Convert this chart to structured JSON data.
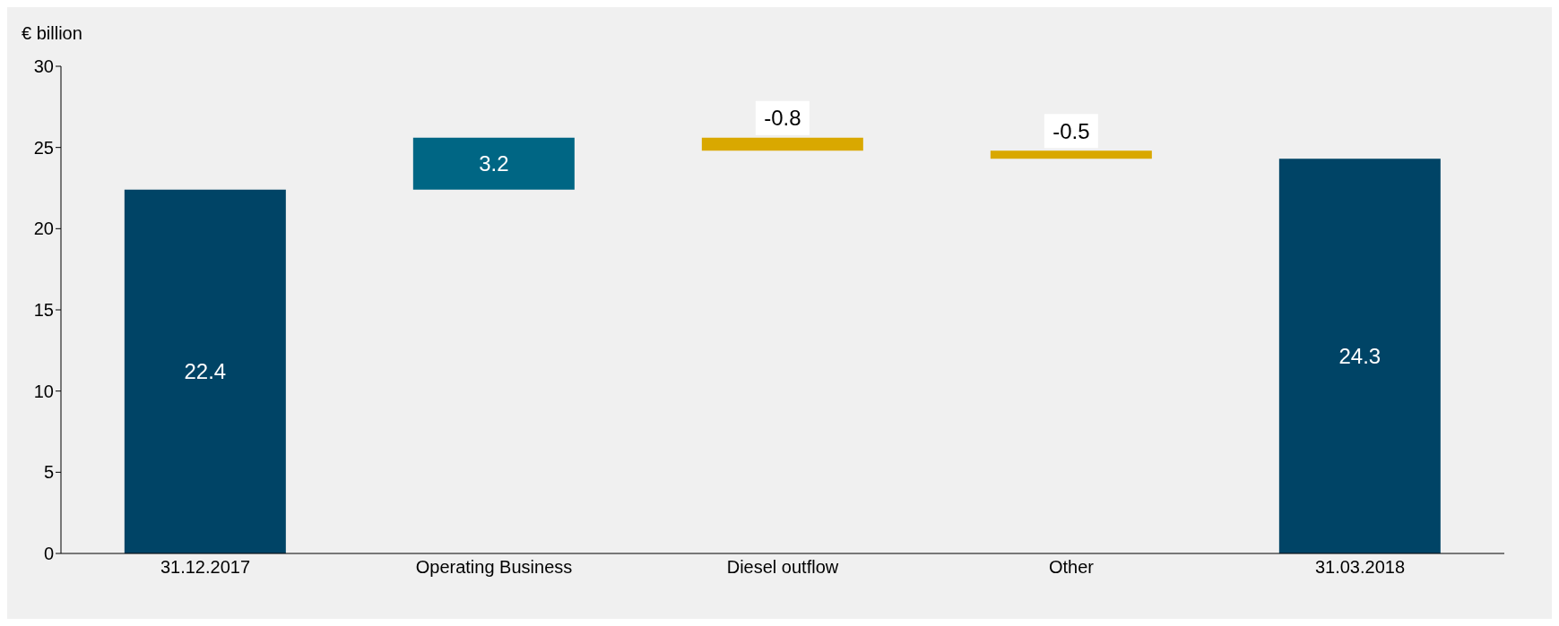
{
  "chart_data": {
    "type": "bar",
    "ylabel": "€ billion",
    "categories": [
      "31.12.2017",
      "Operating Business",
      "Diesel outflow",
      "Other",
      "31.03.2018"
    ],
    "values": [
      22.4,
      3.2,
      -0.8,
      -0.5,
      24.3
    ],
    "base": [
      0,
      22.4,
      25.6,
      24.8,
      0
    ],
    "colors": [
      "#004466",
      "#006684",
      "#d9a800",
      "#d9a800",
      "#004466"
    ],
    "ylim": [
      0,
      30
    ],
    "yticks": [
      0,
      5,
      10,
      15,
      20,
      25,
      30
    ],
    "grid": false,
    "legend": false,
    "data_labels": true
  }
}
